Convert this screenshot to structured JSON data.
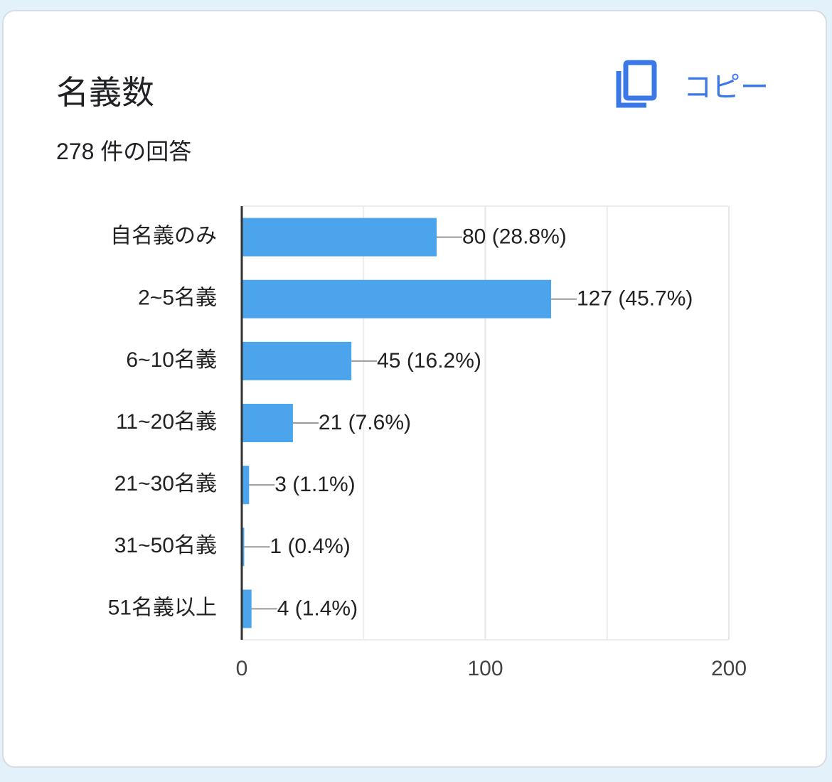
{
  "header": {
    "title": "名義数",
    "response_count": "278 件の回答",
    "copy_button": "コピー"
  },
  "chart_data": {
    "type": "bar",
    "orientation": "horizontal",
    "categories": [
      "自名義のみ",
      "2~5名義",
      "6~10名義",
      "11~20名義",
      "21~30名義",
      "31~50名義",
      "51名義以上"
    ],
    "values": [
      80,
      127,
      45,
      21,
      3,
      1,
      4
    ],
    "value_labels": [
      "80 (28.8%)",
      "127 (45.7%)",
      "45 (16.2%)",
      "21 (7.6%)",
      "3 (1.1%)",
      "1 (0.4%)",
      "4 (1.4%)"
    ],
    "color": "#4ca5ec",
    "xlim": [
      0,
      200
    ],
    "xticks": [
      0,
      100,
      200
    ],
    "minor_gridlines": [
      50,
      150
    ],
    "grid": true
  }
}
